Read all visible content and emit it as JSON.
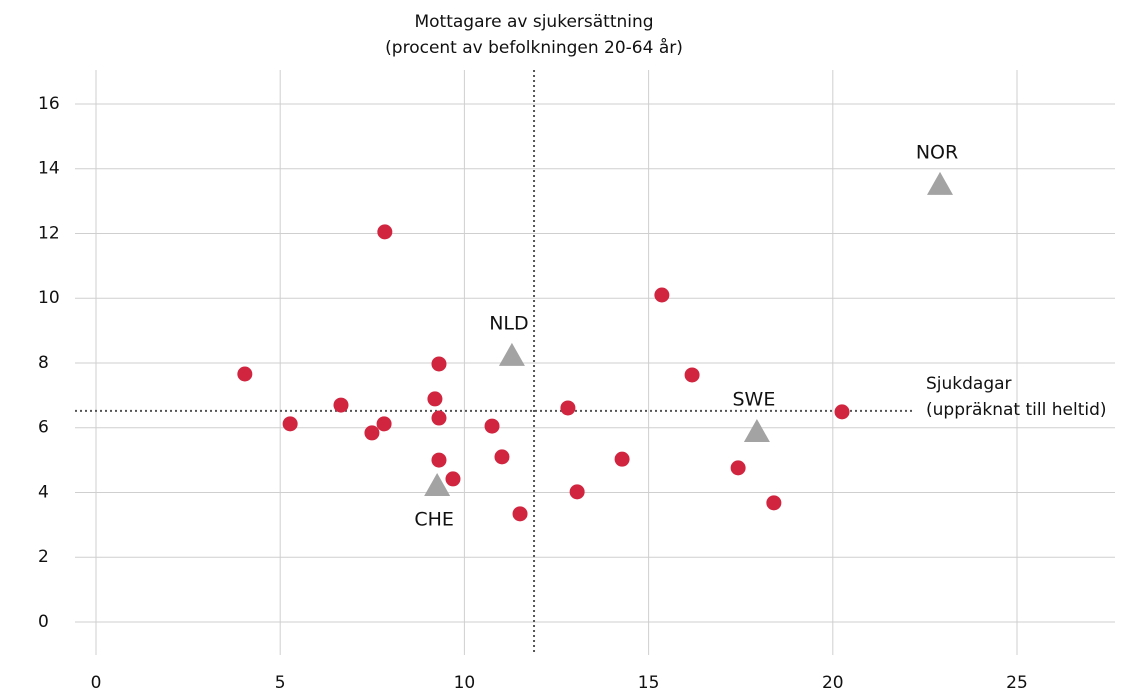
{
  "chart_data": {
    "type": "scatter",
    "xlim": [
      -0.57,
      27.66
    ],
    "ylim": [
      -1.02,
      17.05
    ],
    "xticks": [
      0,
      5,
      10,
      15,
      20,
      25
    ],
    "yticks": [
      0,
      2,
      4,
      6,
      8,
      10,
      12,
      14,
      16
    ],
    "grid": true,
    "series": [
      {
        "color": "#d0243f",
        "marker": "circle",
        "x": [
          4.04,
          5.27,
          6.65,
          7.49,
          7.84,
          7.82,
          9.31,
          9.2,
          9.31,
          9.31,
          9.69,
          10.75,
          11.02,
          11.51,
          12.81,
          13.06,
          14.28,
          15.36,
          16.18,
          17.43,
          18.4,
          20.25
        ],
        "values": [
          7.66,
          6.12,
          6.7,
          5.84,
          12.05,
          6.12,
          7.97,
          6.89,
          6.3,
          5.0,
          4.42,
          6.05,
          5.1,
          3.34,
          6.61,
          4.02,
          5.03,
          10.1,
          7.63,
          4.76,
          3.68,
          6.49
        ]
      },
      {
        "color": "#a3a3a3",
        "marker": "triangle",
        "x": [
          22.91,
          11.29,
          17.94,
          9.26
        ],
        "values": [
          13.5,
          8.22,
          5.87,
          4.2
        ],
        "labels": [
          "NOR",
          "NLD",
          "SWE",
          "CHE"
        ],
        "label_position": [
          "above",
          "above",
          "above",
          "below"
        ]
      }
    ],
    "reference_lines": [
      {
        "axis": "x",
        "value": 11.89,
        "label": [
          "Mottagare av sjukersättning",
          "(procent av befolkningen 20-64 år)"
        ]
      },
      {
        "axis": "y",
        "value": 6.52,
        "label": [
          "Sjukdagar",
          "(uppräknat till heltid)"
        ]
      }
    ]
  }
}
